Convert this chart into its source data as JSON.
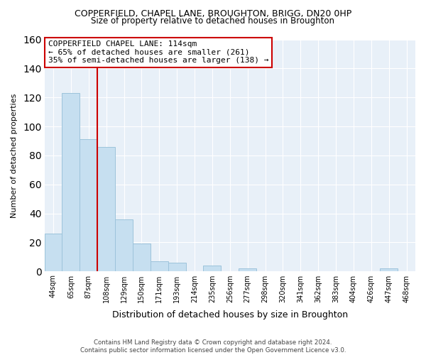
{
  "title": "COPPERFIELD, CHAPEL LANE, BROUGHTON, BRIGG, DN20 0HP",
  "subtitle": "Size of property relative to detached houses in Broughton",
  "xlabel": "Distribution of detached houses by size in Broughton",
  "ylabel": "Number of detached properties",
  "bar_labels": [
    "44sqm",
    "65sqm",
    "87sqm",
    "108sqm",
    "129sqm",
    "150sqm",
    "171sqm",
    "193sqm",
    "214sqm",
    "235sqm",
    "256sqm",
    "277sqm",
    "298sqm",
    "320sqm",
    "341sqm",
    "362sqm",
    "383sqm",
    "404sqm",
    "426sqm",
    "447sqm",
    "468sqm"
  ],
  "bar_values": [
    26,
    123,
    91,
    86,
    36,
    19,
    7,
    6,
    0,
    4,
    0,
    2,
    0,
    0,
    0,
    0,
    0,
    0,
    0,
    2,
    0
  ],
  "bar_color": "#c6dff0",
  "bar_edge_color": "#9dc3db",
  "annotation_box_text": "COPPERFIELD CHAPEL LANE: 114sqm\n← 65% of detached houses are smaller (261)\n35% of semi-detached houses are larger (138) →",
  "vline_color": "#cc0000",
  "vline_x_idx": 3,
  "ylim": [
    0,
    160
  ],
  "yticks": [
    0,
    20,
    40,
    60,
    80,
    100,
    120,
    140,
    160
  ],
  "footer_text": "Contains HM Land Registry data © Crown copyright and database right 2024.\nContains public sector information licensed under the Open Government Licence v3.0.",
  "background_color": "#ffffff",
  "plot_bg_color": "#e8f0f8",
  "grid_color": "#ffffff",
  "title_fontsize": 9,
  "subtitle_fontsize": 8.5
}
